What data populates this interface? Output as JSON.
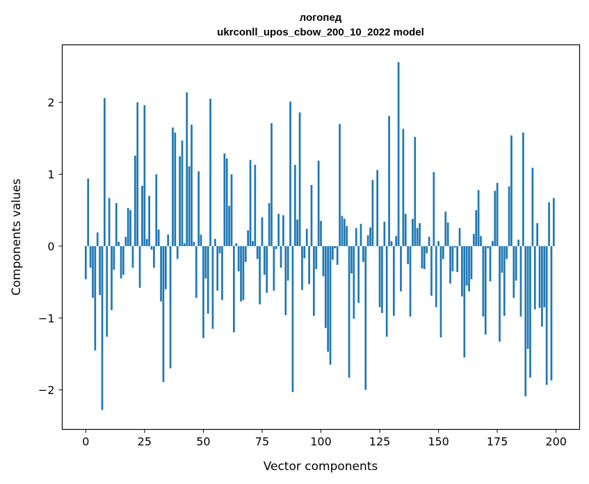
{
  "chart_data": {
    "type": "bar",
    "title": "логопед",
    "subtitle": "ukrconll_upos_cbow_200_10_2022 model",
    "xlabel": "Vector components",
    "ylabel": "Components values",
    "xlim": [
      -10,
      210
    ],
    "ylim": [
      -2.55,
      2.8
    ],
    "xticks": [
      0,
      25,
      50,
      75,
      100,
      125,
      150,
      175,
      200
    ],
    "yticks": [
      -2,
      -1,
      0,
      1,
      2
    ],
    "ytick_labels": [
      "−2",
      "−1",
      "0",
      "1",
      "2"
    ],
    "grid": false,
    "color": "#1f77b4",
    "values": [
      -0.46,
      0.94,
      -0.3,
      -0.72,
      -1.45,
      0.19,
      -0.68,
      -2.28,
      2.06,
      -1.26,
      0.67,
      -0.89,
      -0.33,
      0.6,
      0.06,
      -0.45,
      -0.4,
      0.13,
      0.53,
      0.5,
      -0.3,
      1.26,
      2.0,
      -0.58,
      0.84,
      1.96,
      0.1,
      0.7,
      -0.05,
      -0.3,
      1.0,
      0.23,
      -0.77,
      -1.89,
      -0.6,
      0.16,
      -1.7,
      1.65,
      1.58,
      -0.18,
      1.25,
      1.47,
      0.04,
      2.14,
      1.11,
      1.69,
      0.06,
      -0.72,
      1.04,
      0.16,
      -1.28,
      -0.45,
      -0.94,
      2.05,
      -1.15,
      0.1,
      -0.62,
      -0.1,
      -0.75,
      1.29,
      1.22,
      0.56,
      1.0,
      -1.2,
      0.04,
      -0.35,
      -0.77,
      -0.75,
      -0.22,
      0.22,
      1.2,
      0.07,
      1.13,
      -0.18,
      -0.81,
      0.4,
      -0.4,
      -0.65,
      0.6,
      1.71,
      -0.62,
      -0.04,
      0.45,
      -0.3,
      0.43,
      -0.96,
      -0.48,
      2.01,
      -2.03,
      1.13,
      0.37,
      1.86,
      -0.61,
      -0.17,
      0.24,
      -0.53,
      0.85,
      -0.97,
      -0.32,
      1.19,
      0.35,
      -0.42,
      -1.14,
      -1.47,
      -1.65,
      -0.19,
      -0.03,
      -0.26,
      1.7,
      0.42,
      0.38,
      0.28,
      -1.83,
      -0.38,
      -1.01,
      0.25,
      -0.79,
      0.31,
      -0.22,
      -2.0,
      0.15,
      0.26,
      0.92,
      0.0,
      1.06,
      -0.85,
      -0.93,
      0.34,
      -1.26,
      1.81,
      0.07,
      -0.97,
      0.14,
      2.56,
      -0.63,
      1.63,
      0.45,
      -0.25,
      -0.98,
      0.38,
      1.52,
      0.25,
      0.32,
      -0.31,
      -0.32,
      -0.1,
      0.13,
      -0.69,
      1.03,
      -0.85,
      0.07,
      -1.27,
      -0.18,
      0.48,
      0.33,
      -0.52,
      -0.35,
      -0.02,
      -0.36,
      0.25,
      -0.7,
      -1.55,
      -0.55,
      -0.63,
      -0.46,
      0.17,
      0.5,
      0.78,
      0.14,
      -0.98,
      -1.23,
      -0.03,
      -0.49,
      0.07,
      0.77,
      0.88,
      -1.33,
      -0.37,
      -0.97,
      -0.18,
      0.83,
      1.54,
      -0.72,
      -0.48,
      0.09,
      -0.98,
      1.58,
      -2.09,
      -1.43,
      -1.83,
      1.09,
      -0.88,
      0.32,
      -0.86,
      -1.12,
      -0.85,
      -1.93,
      0.61,
      -1.87,
      0.67
    ]
  }
}
